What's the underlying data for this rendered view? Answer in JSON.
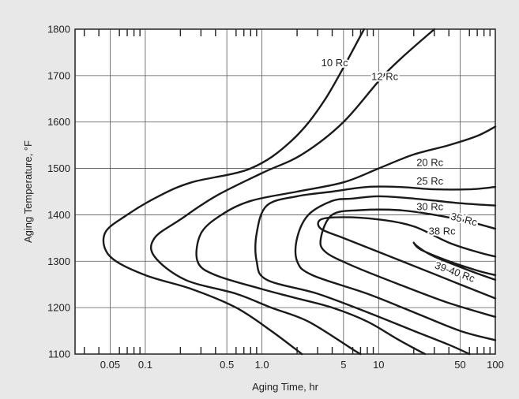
{
  "chart_data": {
    "type": "line",
    "title": "",
    "xlabel": "Aging Time, hr",
    "ylabel": "Aging Temperature, °F",
    "x_scale": "log",
    "xlim": [
      0.025,
      100
    ],
    "ylim": [
      1100,
      1800
    ],
    "grid": true,
    "x_ticks": [
      {
        "value": 0.05,
        "label": "0.05"
      },
      {
        "value": 0.1,
        "label": "0.1"
      },
      {
        "value": 0.5,
        "label": "0.5"
      },
      {
        "value": 1,
        "label": "1.0"
      },
      {
        "value": 5,
        "label": "5"
      },
      {
        "value": 10,
        "label": "10"
      },
      {
        "value": 50,
        "label": "50"
      },
      {
        "value": 100,
        "label": "100"
      }
    ],
    "y_ticks": [
      1100,
      1200,
      1300,
      1400,
      1500,
      1600,
      1700,
      1800
    ],
    "series": [
      {
        "name": "10 Rc",
        "points": [
          [
            7.5,
            1800
          ],
          [
            3.5,
            1650
          ],
          [
            1.8,
            1560
          ],
          [
            0.8,
            1500
          ],
          [
            0.25,
            1470
          ],
          [
            0.13,
            1440
          ],
          [
            0.07,
            1400
          ],
          [
            0.045,
            1360
          ],
          [
            0.05,
            1310
          ],
          [
            0.1,
            1270
          ],
          [
            0.25,
            1240
          ],
          [
            0.6,
            1200
          ],
          [
            1.2,
            1150
          ],
          [
            2.2,
            1100
          ]
        ]
      },
      {
        "name": "12 Rc",
        "points": [
          [
            30,
            1800
          ],
          [
            12,
            1710
          ],
          [
            5,
            1600
          ],
          [
            2.2,
            1530
          ],
          [
            1,
            1490
          ],
          [
            0.4,
            1440
          ],
          [
            0.2,
            1390
          ],
          [
            0.12,
            1350
          ],
          [
            0.12,
            1310
          ],
          [
            0.22,
            1260
          ],
          [
            0.6,
            1230
          ],
          [
            1.2,
            1200
          ],
          [
            2.5,
            1170
          ],
          [
            6,
            1110
          ],
          [
            7,
            1100
          ]
        ]
      },
      {
        "name": "20 Rc",
        "points": [
          [
            100,
            1590
          ],
          [
            70,
            1570
          ],
          [
            40,
            1550
          ],
          [
            20,
            1530
          ],
          [
            10,
            1500
          ],
          [
            5,
            1470
          ],
          [
            2,
            1450
          ],
          [
            0.8,
            1430
          ],
          [
            0.45,
            1400
          ],
          [
            0.3,
            1360
          ],
          [
            0.28,
            1300
          ],
          [
            0.4,
            1270
          ],
          [
            1,
            1240
          ],
          [
            2,
            1220
          ],
          [
            4,
            1200
          ],
          [
            8,
            1170
          ],
          [
            15,
            1130
          ],
          [
            25,
            1100
          ]
        ]
      },
      {
        "name": "25 Rc",
        "points": [
          [
            100,
            1460
          ],
          [
            60,
            1455
          ],
          [
            30,
            1455
          ],
          [
            15,
            1460
          ],
          [
            8,
            1460
          ],
          [
            4,
            1450
          ],
          [
            2,
            1440
          ],
          [
            1.1,
            1420
          ],
          [
            0.9,
            1360
          ],
          [
            0.9,
            1300
          ],
          [
            1.1,
            1260
          ],
          [
            3,
            1230
          ],
          [
            8,
            1190
          ],
          [
            20,
            1150
          ],
          [
            40,
            1120
          ],
          [
            60,
            1100
          ]
        ]
      },
      {
        "name": "30 Rc",
        "points": [
          [
            100,
            1420
          ],
          [
            50,
            1425
          ],
          [
            20,
            1435
          ],
          [
            10,
            1440
          ],
          [
            6,
            1435
          ],
          [
            4,
            1430
          ],
          [
            2.5,
            1400
          ],
          [
            2,
            1350
          ],
          [
            2,
            1300
          ],
          [
            2.7,
            1270
          ],
          [
            8,
            1230
          ],
          [
            20,
            1190
          ],
          [
            50,
            1150
          ],
          [
            100,
            1130
          ]
        ]
      },
      {
        "name": "35 Rc",
        "points": [
          [
            100,
            1370
          ],
          [
            60,
            1385
          ],
          [
            30,
            1400
          ],
          [
            15,
            1410
          ],
          [
            7,
            1410
          ],
          [
            4,
            1400
          ],
          [
            3.2,
            1350
          ],
          [
            3.5,
            1320
          ],
          [
            6,
            1290
          ],
          [
            15,
            1250
          ],
          [
            40,
            1210
          ],
          [
            100,
            1180
          ]
        ]
      },
      {
        "name": "38 Rc",
        "points": [
          [
            100,
            1310
          ],
          [
            70,
            1320
          ],
          [
            40,
            1340
          ],
          [
            20,
            1375
          ],
          [
            10,
            1390
          ],
          [
            5,
            1395
          ],
          [
            3.2,
            1390
          ],
          [
            3.2,
            1370
          ],
          [
            5,
            1350
          ],
          [
            10,
            1320
          ],
          [
            20,
            1290
          ],
          [
            50,
            1250
          ],
          [
            100,
            1220
          ]
        ]
      },
      {
        "name": "39-40 Rc",
        "points": [
          [
            100,
            1260
          ],
          [
            60,
            1280
          ],
          [
            30,
            1310
          ],
          [
            22,
            1330
          ],
          [
            20,
            1340
          ],
          [
            23,
            1325
          ],
          [
            40,
            1300
          ],
          [
            70,
            1280
          ],
          [
            100,
            1270
          ]
        ]
      }
    ],
    "curve_labels": [
      {
        "text": "10 Rc",
        "x": 4.2,
        "y": 1720
      },
      {
        "text": "12 Rc",
        "x": 11.3,
        "y": 1690
      },
      {
        "text": "20 Rc",
        "x": 27.5,
        "y": 1505
      },
      {
        "text": "25 Rc",
        "x": 27.5,
        "y": 1465
      },
      {
        "text": "30 Rc",
        "x": 27.5,
        "y": 1410
      },
      {
        "text": "35 Rc",
        "x": 53,
        "y": 1383
      },
      {
        "text": "38 Rc",
        "x": 35,
        "y": 1357
      },
      {
        "text": "39-40 Rc",
        "x": 44,
        "y": 1270
      }
    ]
  }
}
